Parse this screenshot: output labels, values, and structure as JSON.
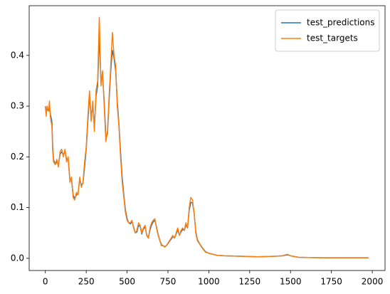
{
  "chart_data": {
    "type": "line",
    "x": [
      0,
      5,
      10,
      20,
      25,
      30,
      40,
      45,
      50,
      60,
      70,
      80,
      90,
      100,
      110,
      120,
      130,
      140,
      150,
      160,
      170,
      180,
      190,
      200,
      210,
      220,
      230,
      240,
      250,
      260,
      270,
      280,
      290,
      300,
      310,
      320,
      330,
      340,
      350,
      360,
      370,
      380,
      390,
      400,
      410,
      420,
      430,
      440,
      450,
      460,
      470,
      480,
      490,
      500,
      510,
      520,
      530,
      540,
      550,
      560,
      570,
      580,
      590,
      600,
      610,
      620,
      630,
      640,
      650,
      660,
      670,
      680,
      690,
      700,
      710,
      720,
      730,
      740,
      750,
      760,
      770,
      780,
      790,
      800,
      810,
      820,
      830,
      840,
      850,
      860,
      870,
      880,
      890,
      900,
      910,
      920,
      930,
      940,
      950,
      960,
      980,
      1000,
      1050,
      1100,
      1200,
      1300,
      1400,
      1450,
      1480,
      1500,
      1550,
      1700,
      1978
    ],
    "series": [
      {
        "name": "test_predictions",
        "color": "#1f77b4",
        "values": [
          0.3,
          0.285,
          0.295,
          0.29,
          0.3,
          0.285,
          0.27,
          0.22,
          0.195,
          0.185,
          0.19,
          0.185,
          0.205,
          0.21,
          0.205,
          0.21,
          0.195,
          0.195,
          0.155,
          0.155,
          0.125,
          0.118,
          0.125,
          0.128,
          0.155,
          0.145,
          0.148,
          0.18,
          0.215,
          0.27,
          0.32,
          0.28,
          0.3,
          0.26,
          0.32,
          0.34,
          0.44,
          0.35,
          0.36,
          0.31,
          0.24,
          0.245,
          0.31,
          0.37,
          0.41,
          0.395,
          0.37,
          0.31,
          0.265,
          0.21,
          0.16,
          0.125,
          0.095,
          0.078,
          0.07,
          0.068,
          0.072,
          0.062,
          0.05,
          0.052,
          0.065,
          0.063,
          0.048,
          0.058,
          0.062,
          0.046,
          0.04,
          0.056,
          0.066,
          0.072,
          0.075,
          0.062,
          0.047,
          0.036,
          0.027,
          0.025,
          0.023,
          0.025,
          0.029,
          0.034,
          0.038,
          0.043,
          0.04,
          0.048,
          0.056,
          0.046,
          0.052,
          0.057,
          0.055,
          0.066,
          0.06,
          0.095,
          0.11,
          0.11,
          0.09,
          0.053,
          0.037,
          0.031,
          0.026,
          0.021,
          0.013,
          0.01,
          0.006,
          0.005,
          0.004,
          0.003,
          0.004,
          0.005,
          0.007,
          0.005,
          0.002,
          0.001,
          0.001
        ]
      },
      {
        "name": "test_targets",
        "color": "#ff7f0e",
        "values": [
          0.3,
          0.28,
          0.3,
          0.29,
          0.31,
          0.28,
          0.26,
          0.21,
          0.19,
          0.185,
          0.195,
          0.18,
          0.21,
          0.215,
          0.2,
          0.215,
          0.19,
          0.2,
          0.15,
          0.16,
          0.12,
          0.115,
          0.13,
          0.125,
          0.16,
          0.14,
          0.15,
          0.19,
          0.22,
          0.28,
          0.33,
          0.27,
          0.31,
          0.25,
          0.33,
          0.35,
          0.475,
          0.34,
          0.37,
          0.3,
          0.23,
          0.25,
          0.32,
          0.38,
          0.445,
          0.4,
          0.38,
          0.3,
          0.26,
          0.2,
          0.15,
          0.12,
          0.09,
          0.075,
          0.07,
          0.07,
          0.075,
          0.06,
          0.05,
          0.055,
          0.07,
          0.065,
          0.05,
          0.06,
          0.065,
          0.045,
          0.04,
          0.06,
          0.07,
          0.075,
          0.078,
          0.06,
          0.045,
          0.035,
          0.025,
          0.025,
          0.022,
          0.025,
          0.03,
          0.035,
          0.04,
          0.045,
          0.04,
          0.05,
          0.06,
          0.045,
          0.055,
          0.06,
          0.055,
          0.07,
          0.06,
          0.1,
          0.12,
          0.115,
          0.09,
          0.05,
          0.035,
          0.03,
          0.025,
          0.02,
          0.012,
          0.01,
          0.006,
          0.005,
          0.004,
          0.003,
          0.004,
          0.005,
          0.008,
          0.005,
          0.002,
          0.001,
          0.001
        ]
      }
    ],
    "xlim": [
      -99,
      2078
    ],
    "xticks": [
      0,
      250,
      500,
      750,
      1000,
      1250,
      1500,
      1750,
      2000
    ],
    "ylim": [
      -0.024,
      0.498
    ],
    "yticks": [
      {
        "value": 0,
        "label": "0.0"
      },
      0.1,
      0.2,
      0.3,
      0.4
    ],
    "legend": "upper right",
    "grid": false
  }
}
